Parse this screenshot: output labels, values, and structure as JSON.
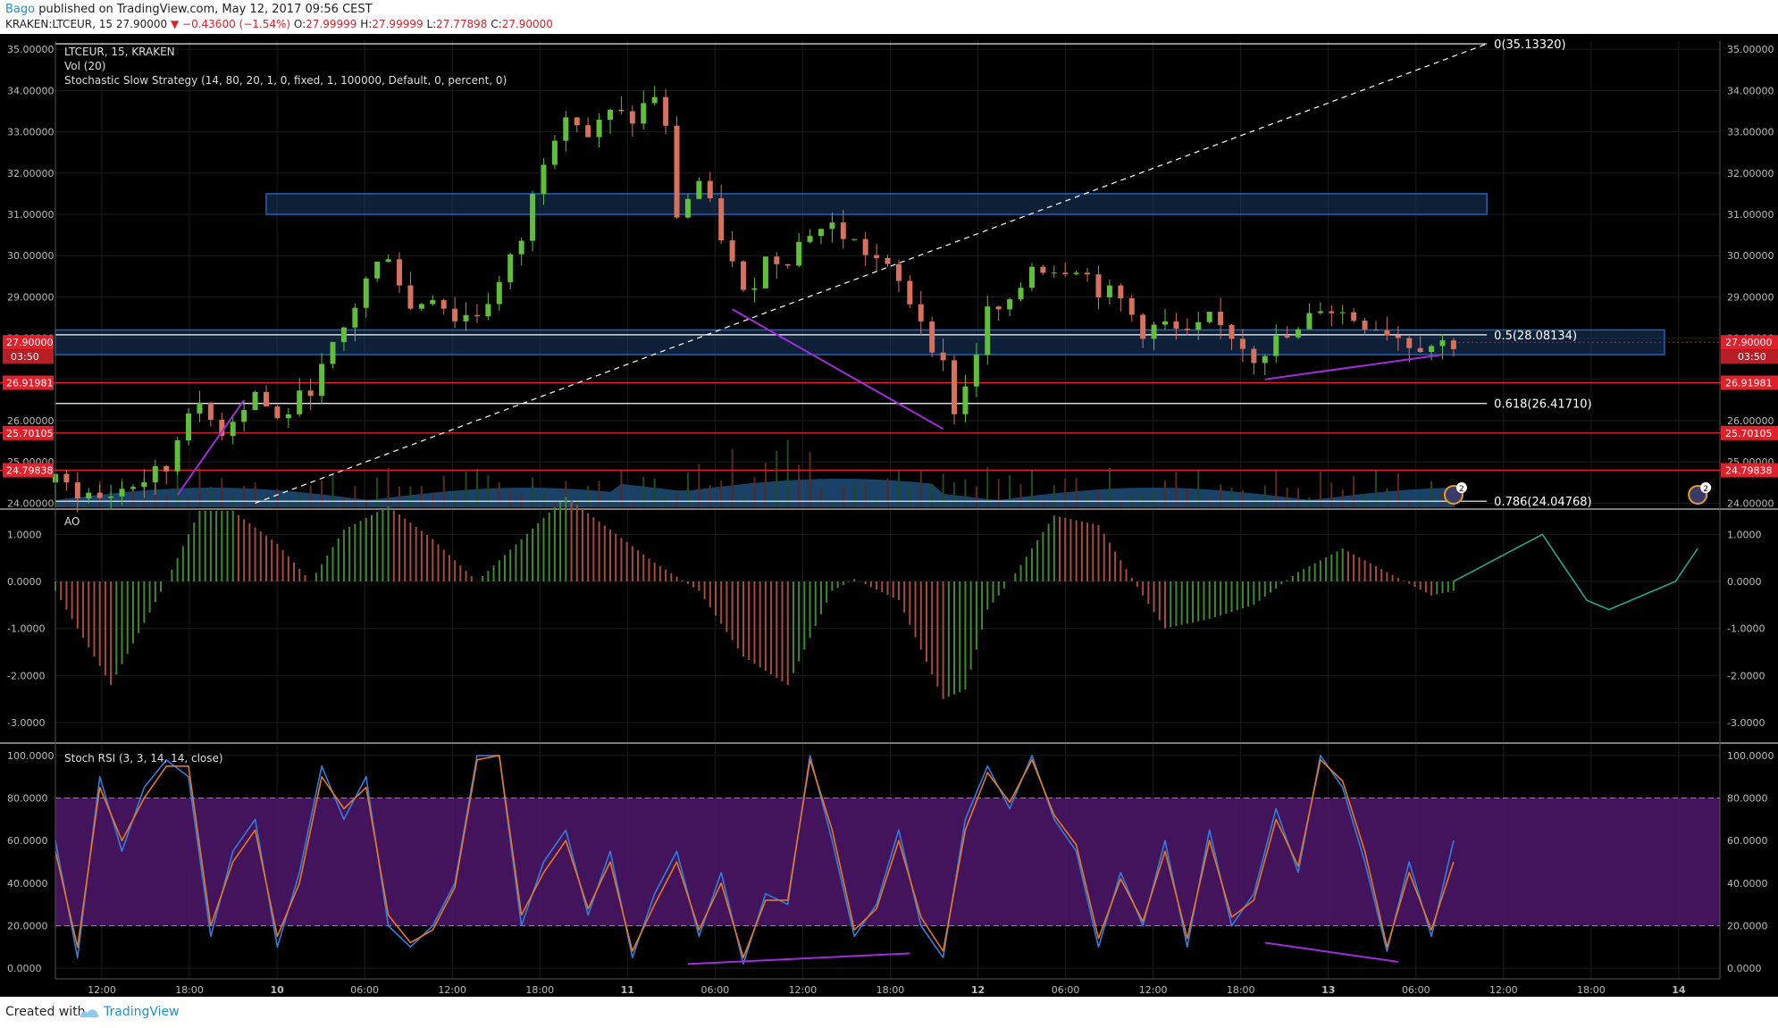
{
  "header": {
    "author": "Bago",
    "publish_text": "published on TradingView.com, May 12, 2017 09:56 CEST",
    "symbol": "KRAKEN:LTCEUR, 15",
    "last": "27.90000",
    "change": "−0.43600 (−1.54%)",
    "o_label": "O:",
    "o_value": "27.99999",
    "h_label": "H:",
    "h_value": "27.99999",
    "l_label": "L:",
    "l_value": "27.77898",
    "c_label": "C:",
    "c_value": "27.90000"
  },
  "legend": {
    "line1": "LTCEUR, 15, KRAKEN",
    "line2": "Vol (20)",
    "line3": "Stochastic Slow Strategy (14, 80, 20, 1, 0, fixed, 1, 100000, Default, 0, percent, 0)"
  },
  "footer": {
    "created_with": "Created with",
    "brand": "TradingView"
  },
  "colors": {
    "background": "#000000",
    "up": "#5fbf3a",
    "down": "#d8705e",
    "blue_box": "#1f63b8",
    "fib_line": "#ffffff",
    "red_level": "#e0202a",
    "purple_line": "#a12cdc",
    "k_line": "#2f7fe0",
    "d_line": "#e8781e",
    "stoch_band": "#4a1666",
    "ao_projection": "#20a891"
  },
  "chart_data": [
    {
      "type": "candlestick",
      "title": "LTCEUR, 15, KRAKEN",
      "time_axis": [
        "12:00",
        "18:00",
        "10",
        "06:00",
        "12:00",
        "18:00",
        "11",
        "06:00",
        "12:00",
        "18:00",
        "12",
        "06:00",
        "12:00",
        "18:00",
        "13",
        "06:00",
        "12:00",
        "18:00",
        "14"
      ],
      "ylim": [
        23.9,
        35.2
      ],
      "y_ticks": [
        "35.00000",
        "34.00000",
        "33.00000",
        "32.00000",
        "31.00000",
        "30.00000",
        "29.00000",
        "28.00000",
        "27.00000",
        "26.00000",
        "25.00000",
        "24.00000"
      ],
      "close_path": [
        [
          0,
          24.5
        ],
        [
          4,
          24.1
        ],
        [
          10,
          24.8
        ],
        [
          12,
          26.4
        ],
        [
          15,
          25.8
        ],
        [
          18,
          26.7
        ],
        [
          20,
          26.0
        ],
        [
          22,
          26.5
        ],
        [
          24,
          27.2
        ],
        [
          26,
          28.2
        ],
        [
          28,
          29.4
        ],
        [
          30,
          30.1
        ],
        [
          32,
          28.7
        ],
        [
          34,
          29.1
        ],
        [
          36,
          28.5
        ],
        [
          38,
          28.6
        ],
        [
          40,
          29.3
        ],
        [
          42,
          30.4
        ],
        [
          44,
          32.4
        ],
        [
          46,
          33.6
        ],
        [
          48,
          32.9
        ],
        [
          50,
          33.4
        ],
        [
          52,
          33.3
        ],
        [
          54,
          33.9
        ],
        [
          55,
          33.0
        ],
        [
          56,
          31.0
        ],
        [
          58,
          31.8
        ],
        [
          60,
          30.5
        ],
        [
          62,
          29.0
        ],
        [
          64,
          29.9
        ],
        [
          66,
          30.0
        ],
        [
          68,
          30.6
        ],
        [
          70,
          30.7
        ],
        [
          72,
          30.3
        ],
        [
          74,
          29.9
        ],
        [
          76,
          29.3
        ],
        [
          78,
          28.5
        ],
        [
          80,
          27.3
        ],
        [
          81,
          26.3
        ],
        [
          82,
          26.8
        ],
        [
          84,
          28.6
        ],
        [
          86,
          28.7
        ],
        [
          88,
          29.8
        ],
        [
          90,
          29.7
        ],
        [
          92,
          29.8
        ],
        [
          94,
          29.2
        ],
        [
          96,
          28.9
        ],
        [
          98,
          28.2
        ],
        [
          100,
          28.3
        ],
        [
          102,
          28.0
        ],
        [
          104,
          28.4
        ],
        [
          106,
          28.1
        ],
        [
          108,
          27.6
        ],
        [
          110,
          27.9
        ],
        [
          112,
          28.1
        ],
        [
          114,
          28.8
        ],
        [
          116,
          28.6
        ],
        [
          118,
          28.4
        ],
        [
          120,
          28.2
        ],
        [
          122,
          27.9
        ],
        [
          124,
          27.85
        ],
        [
          126,
          27.9
        ]
      ],
      "levels": [
        {
          "label": "0(35.13320)",
          "value": 35.1332
        },
        {
          "label": "0.5(28.08134)",
          "value": 28.08134
        },
        {
          "label": "0.618(26.41710)",
          "value": 26.4171
        },
        {
          "label": "0.786(24.04768)",
          "value": 24.04768
        }
      ],
      "price_tags": [
        {
          "text": "27.90000",
          "value": 27.9
        },
        {
          "text": "26.91981",
          "value": 26.91981
        },
        {
          "text": "25.70105",
          "value": 25.70105
        },
        {
          "text": "24.79838",
          "value": 24.79838
        }
      ],
      "countdown": "03:50",
      "zones": [
        {
          "from": 31.0,
          "to": 31.5,
          "start": 19,
          "end": 129
        },
        {
          "from": 27.6,
          "to": 28.2,
          "start": 0,
          "end": 145
        }
      ],
      "trend_lines": [
        {
          "from": [
            18,
            24.0
          ],
          "to": [
            129,
            35.1332
          ],
          "style": "dashed"
        }
      ],
      "divergence_lines": [
        {
          "from": [
            11,
            24.2
          ],
          "to": [
            17,
            26.5
          ]
        },
        {
          "from": [
            61,
            28.7
          ],
          "to": [
            80,
            25.8
          ]
        },
        {
          "from": [
            109,
            27.0
          ],
          "to": [
            125,
            27.6
          ]
        }
      ],
      "event_badges": [
        {
          "at": 126,
          "count": "2"
        },
        {
          "at": 148,
          "count": "2"
        }
      ]
    },
    {
      "type": "bar",
      "title": "AO",
      "ylim": [
        -3.4,
        1.5
      ],
      "y_ticks": [
        "1.0000",
        "0.0000",
        "-1.0000",
        "-2.0000",
        "-3.0000"
      ],
      "ao_path": [
        [
          0,
          -0.2
        ],
        [
          5,
          -2.2
        ],
        [
          10,
          0.0
        ],
        [
          13,
          1.5
        ],
        [
          16,
          1.5
        ],
        [
          20,
          0.8
        ],
        [
          23,
          0.0
        ],
        [
          26,
          1.1
        ],
        [
          30,
          1.6
        ],
        [
          34,
          0.9
        ],
        [
          38,
          0.0
        ],
        [
          42,
          0.9
        ],
        [
          46,
          1.8
        ],
        [
          50,
          1.1
        ],
        [
          54,
          0.4
        ],
        [
          58,
          -0.2
        ],
        [
          62,
          -1.6
        ],
        [
          66,
          -2.2
        ],
        [
          70,
          -0.2
        ],
        [
          72,
          0.05
        ],
        [
          76,
          -0.4
        ],
        [
          80,
          -2.5
        ],
        [
          82,
          -2.3
        ],
        [
          84,
          -0.6
        ],
        [
          86,
          0.0
        ],
        [
          90,
          1.4
        ],
        [
          94,
          1.2
        ],
        [
          98,
          -0.3
        ],
        [
          100,
          -1.0
        ],
        [
          104,
          -0.8
        ],
        [
          108,
          -0.5
        ],
        [
          112,
          0.2
        ],
        [
          116,
          0.7
        ],
        [
          120,
          0.2
        ],
        [
          124,
          -0.3
        ],
        [
          126,
          -0.2
        ]
      ],
      "projection": [
        [
          126,
          0.0
        ],
        [
          134,
          1.0
        ],
        [
          138,
          -0.4
        ],
        [
          140,
          -0.6
        ],
        [
          146,
          0.0
        ],
        [
          148,
          0.7
        ]
      ]
    },
    {
      "type": "line",
      "title": "Stoch RSI (3, 3, 14, 14, close)",
      "ylim": [
        -5,
        105
      ],
      "y_ticks": [
        "100.0000",
        "80.0000",
        "60.0000",
        "40.0000",
        "20.0000",
        "0.0000"
      ],
      "band": [
        20,
        80
      ],
      "series": [
        {
          "values": [
            [
              0,
              60
            ],
            [
              2,
              5
            ],
            [
              4,
              90
            ],
            [
              6,
              55
            ],
            [
              8,
              85
            ],
            [
              10,
              98
            ],
            [
              12,
              90
            ],
            [
              14,
              15
            ],
            [
              16,
              55
            ],
            [
              18,
              70
            ],
            [
              20,
              10
            ],
            [
              22,
              45
            ],
            [
              24,
              95
            ],
            [
              26,
              70
            ],
            [
              28,
              90
            ],
            [
              30,
              20
            ],
            [
              32,
              10
            ],
            [
              34,
              20
            ],
            [
              36,
              40
            ],
            [
              38,
              100
            ],
            [
              40,
              100
            ],
            [
              42,
              20
            ],
            [
              44,
              50
            ],
            [
              46,
              65
            ],
            [
              48,
              25
            ],
            [
              50,
              55
            ],
            [
              52,
              5
            ],
            [
              54,
              35
            ],
            [
              56,
              55
            ],
            [
              58,
              15
            ],
            [
              60,
              45
            ],
            [
              62,
              2
            ],
            [
              64,
              35
            ],
            [
              66,
              30
            ],
            [
              68,
              100
            ],
            [
              70,
              60
            ],
            [
              72,
              15
            ],
            [
              74,
              30
            ],
            [
              76,
              65
            ],
            [
              78,
              20
            ],
            [
              80,
              5
            ],
            [
              82,
              70
            ],
            [
              84,
              95
            ],
            [
              86,
              75
            ],
            [
              88,
              100
            ],
            [
              90,
              70
            ],
            [
              92,
              55
            ],
            [
              94,
              10
            ],
            [
              96,
              45
            ],
            [
              98,
              20
            ],
            [
              100,
              60
            ],
            [
              102,
              10
            ],
            [
              104,
              65
            ],
            [
              106,
              20
            ],
            [
              108,
              35
            ],
            [
              110,
              75
            ],
            [
              112,
              45
            ],
            [
              114,
              100
            ],
            [
              116,
              85
            ],
            [
              118,
              50
            ],
            [
              120,
              8
            ],
            [
              122,
              50
            ],
            [
              124,
              15
            ],
            [
              126,
              60
            ]
          ]
        },
        {
          "values": [
            [
              0,
              55
            ],
            [
              2,
              10
            ],
            [
              4,
              85
            ],
            [
              6,
              60
            ],
            [
              8,
              80
            ],
            [
              10,
              95
            ],
            [
              12,
              95
            ],
            [
              14,
              20
            ],
            [
              16,
              50
            ],
            [
              18,
              65
            ],
            [
              20,
              15
            ],
            [
              22,
              40
            ],
            [
              24,
              90
            ],
            [
              26,
              75
            ],
            [
              28,
              85
            ],
            [
              30,
              25
            ],
            [
              32,
              12
            ],
            [
              34,
              18
            ],
            [
              36,
              38
            ],
            [
              38,
              98
            ],
            [
              40,
              100
            ],
            [
              42,
              25
            ],
            [
              44,
              45
            ],
            [
              46,
              60
            ],
            [
              48,
              28
            ],
            [
              50,
              50
            ],
            [
              52,
              8
            ],
            [
              54,
              30
            ],
            [
              56,
              50
            ],
            [
              58,
              18
            ],
            [
              60,
              40
            ],
            [
              62,
              5
            ],
            [
              64,
              32
            ],
            [
              66,
              32
            ],
            [
              68,
              98
            ],
            [
              70,
              65
            ],
            [
              72,
              18
            ],
            [
              74,
              28
            ],
            [
              76,
              60
            ],
            [
              78,
              24
            ],
            [
              80,
              8
            ],
            [
              82,
              65
            ],
            [
              84,
              92
            ],
            [
              86,
              78
            ],
            [
              88,
              98
            ],
            [
              90,
              72
            ],
            [
              92,
              58
            ],
            [
              94,
              14
            ],
            [
              96,
              42
            ],
            [
              98,
              22
            ],
            [
              100,
              55
            ],
            [
              102,
              14
            ],
            [
              104,
              60
            ],
            [
              106,
              24
            ],
            [
              108,
              32
            ],
            [
              110,
              70
            ],
            [
              112,
              48
            ],
            [
              114,
              98
            ],
            [
              116,
              88
            ],
            [
              118,
              55
            ],
            [
              120,
              10
            ],
            [
              122,
              45
            ],
            [
              124,
              18
            ],
            [
              126,
              50
            ]
          ]
        }
      ],
      "divergence_lines": [
        {
          "from": [
            57,
            2
          ],
          "to": [
            77,
            7
          ]
        },
        {
          "from": [
            109,
            12
          ],
          "to": [
            121,
            3
          ]
        }
      ]
    }
  ]
}
